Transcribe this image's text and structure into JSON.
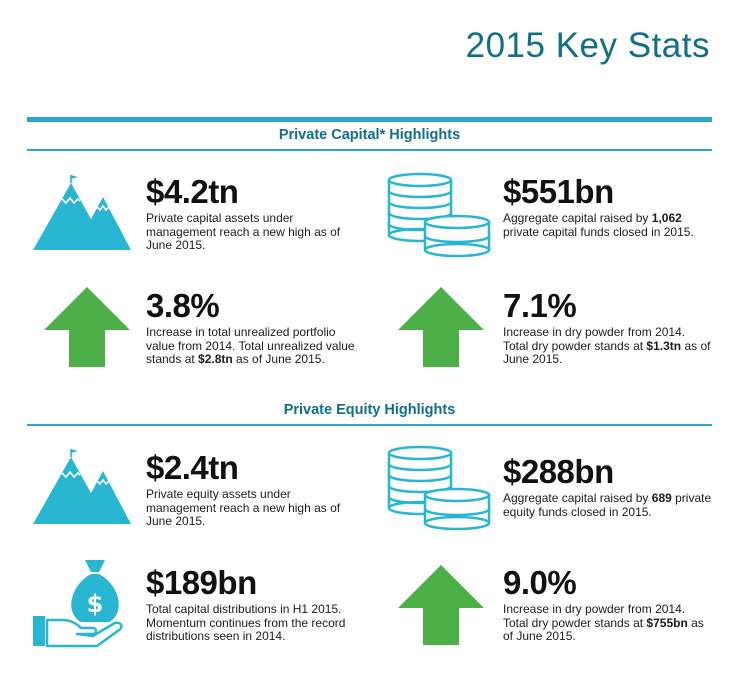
{
  "title": "2015 Key Stats",
  "sections": {
    "private_capital": {
      "title": "Private Capital* Highlights"
    },
    "private_equity": {
      "title": "Private Equity Highlights"
    }
  },
  "stats": {
    "pc_aum": {
      "value": "$4.2tn",
      "desc": "Private capital assets under management reach a new high as of June 2015.",
      "icon": "mountain-flag-icon"
    },
    "pc_raised": {
      "value": "$551bn",
      "desc_pre": "Aggregate capital raised by ",
      "desc_bold": "1,062",
      "desc_post": " private capital funds closed in 2015.",
      "icon": "coin-stack-icon"
    },
    "pc_unrealized": {
      "value": "3.8%",
      "desc_pre": "Increase in total unrealized portfolio value from 2014. Total unrealized value stands at ",
      "desc_bold": "$2.8tn",
      "desc_post": " as of June 2015.",
      "icon": "up-arrow-icon"
    },
    "pc_dry_powder": {
      "value": "7.1%",
      "desc_pre": "Increase in dry powder from 2014. Total dry powder stands at ",
      "desc_bold": "$1.3tn",
      "desc_post": " as of June 2015.",
      "icon": "up-arrow-icon"
    },
    "pe_aum": {
      "value": "$2.4tn",
      "desc": "Private equity assets under management reach a new high as of June 2015.",
      "icon": "mountain-flag-icon"
    },
    "pe_raised": {
      "value": "$288bn",
      "desc_pre": "Aggregate capital raised by ",
      "desc_bold": "689",
      "desc_post": " private equity funds closed in 2015.",
      "icon": "coin-stack-icon"
    },
    "pe_distributions": {
      "value": "$189bn",
      "desc": "Total capital distributions in H1 2015. Momentum continues from the record distributions seen in 2014.",
      "icon": "money-bag-hand-icon"
    },
    "pe_dry_powder": {
      "value": "9.0%",
      "desc_pre": "Increase in dry powder from 2014. Total dry powder stands at ",
      "desc_bold": "$755bn",
      "desc_post": " as of June 2015.",
      "icon": "up-arrow-icon"
    }
  },
  "colors": {
    "teal_title": "#0e6f86",
    "teal_icon": "#29b6d3",
    "green_arrow": "#4caf47"
  }
}
